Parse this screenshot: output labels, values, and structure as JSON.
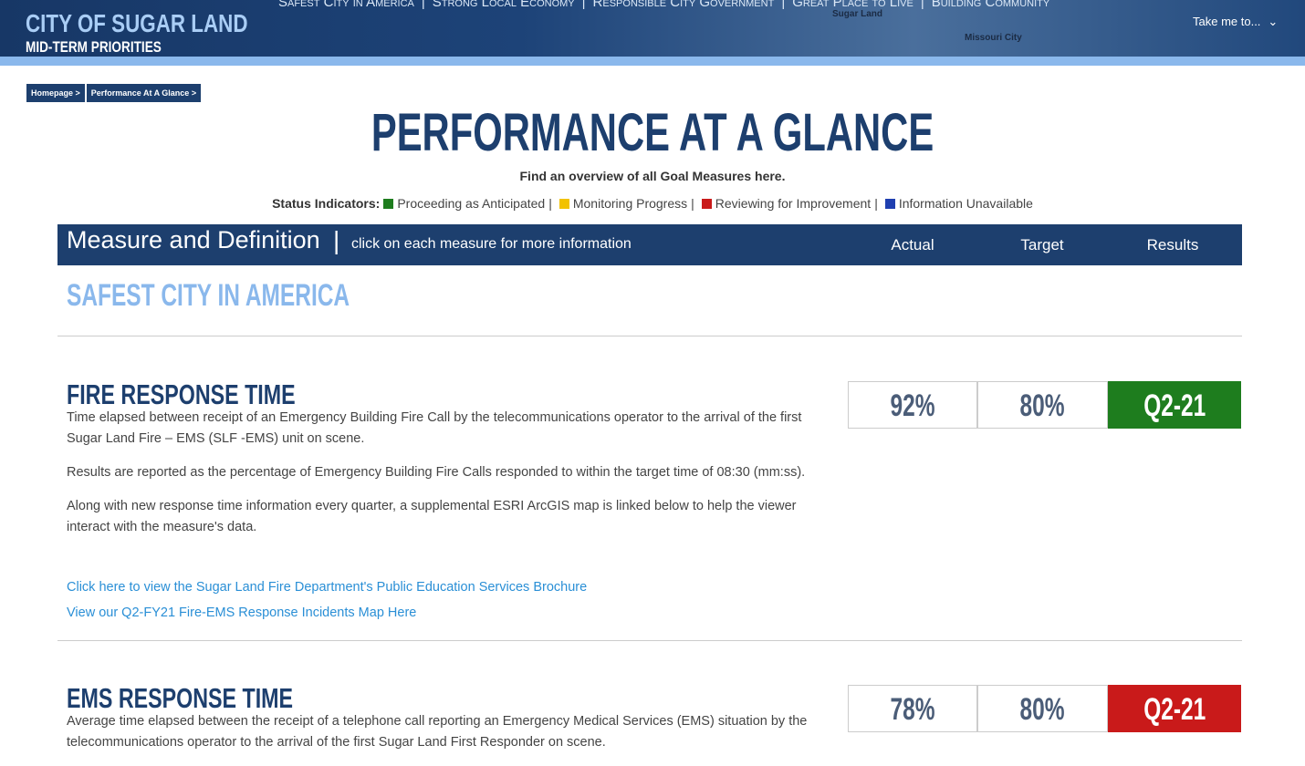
{
  "header": {
    "title": "CITY OF SUGAR LAND",
    "subtitle": "MID-TERM PRIORITIES",
    "nav": [
      "Safest City in America",
      "Strong Local Economy",
      "Responsible City Government",
      "Great Place to Live",
      "Building Community"
    ],
    "map_labels": [
      "Sugar Land",
      "Missouri City"
    ],
    "menu": "Take me to..."
  },
  "breadcrumb": [
    "Homepage >",
    "Performance At A Glance >"
  ],
  "page": {
    "title": "PERFORMANCE AT A GLANCE",
    "intro": "Find an overview of all Goal Measures here.",
    "status_label": "Status Indicators:",
    "statuses": [
      {
        "label": "Proceeding as Anticipated",
        "color": "#1e7d1e"
      },
      {
        "label": "Monitoring Progress",
        "color": "#f2c200"
      },
      {
        "label": "Reviewing for Improvement",
        "color": "#c91a1a"
      },
      {
        "label": "Information Unavailable",
        "color": "#1f3fb0"
      }
    ]
  },
  "table_header": {
    "measure": "Measure and Definition",
    "hint": "click on each measure for more information",
    "columns": [
      "Actual",
      "Target",
      "Results"
    ]
  },
  "section": "SAFEST CITY IN AMERICA",
  "measures": [
    {
      "title": "FIRE RESPONSE TIME",
      "paragraphs": [
        "Time elapsed between receipt of an Emergency Building Fire Call by the telecommunications operator to the arrival of the first Sugar Land Fire – EMS (SLF -EMS) unit on scene.",
        "Results are reported as the percentage of Emergency Building Fire Calls responded to within the target time of 08:30 (mm:ss).",
        "Along with new response time information every quarter, a supplemental ESRI ArcGIS map is linked below to help the viewer interact with the measure's data."
      ],
      "links": [
        "Click here to view the Sugar Land Fire Department's Public Education Services Brochure",
        "View our Q2-FY21 Fire-EMS Response Incidents Map Here"
      ],
      "actual": "92%",
      "target": "80%",
      "result": "Q2-21",
      "result_color": "#1e7d1e"
    },
    {
      "title": "EMS RESPONSE TIME",
      "paragraphs": [
        "Average time elapsed between the receipt of a telephone call reporting an Emergency Medical Services (EMS) situation by the telecommunications operator to the arrival of the first Sugar Land First Responder on scene."
      ],
      "links": [],
      "actual": "78%",
      "target": "80%",
      "result": "Q2-21",
      "result_color": "#c91a1a"
    }
  ]
}
